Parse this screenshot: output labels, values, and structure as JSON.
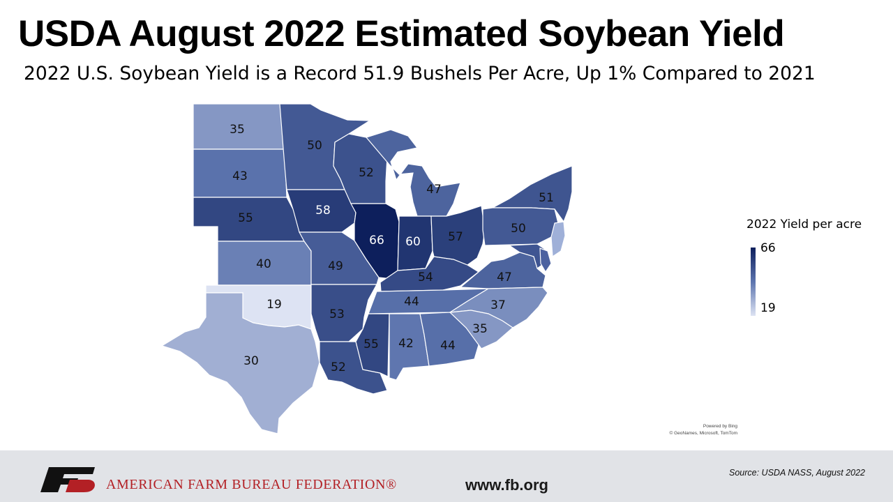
{
  "title": "USDA August 2022 Estimated Soybean Yield",
  "subtitle": "2022 U.S. Soybean Yield is a Record 51.9 Bushels Per Acre, Up 1% Compared to 2021",
  "legend": {
    "title": "2022 Yield per acre",
    "max": "66",
    "min": "19",
    "color_max": "#0d1f5c",
    "color_min": "#dde3f3"
  },
  "map_credit": {
    "line1": "Powered by Bing",
    "line2": "© GeoNames, Microsoft, TomTom"
  },
  "footer": {
    "org_name": "AMERICAN FARM BUREAU FEDERATION®",
    "website": "www.fb.org",
    "source": "Source:  USDA NASS, August 2022",
    "brand_red": "#b32025",
    "background": "#e1e3e7"
  },
  "states": [
    {
      "id": "ND",
      "yield": 35
    },
    {
      "id": "SD",
      "yield": 43
    },
    {
      "id": "NE",
      "yield": 55
    },
    {
      "id": "KS",
      "yield": 40
    },
    {
      "id": "OK",
      "yield": 19
    },
    {
      "id": "TX",
      "yield": 30
    },
    {
      "id": "MN",
      "yield": 50
    },
    {
      "id": "IA",
      "yield": 58
    },
    {
      "id": "MO",
      "yield": 49
    },
    {
      "id": "AR",
      "yield": 53
    },
    {
      "id": "LA",
      "yield": 52
    },
    {
      "id": "WI",
      "yield": 52
    },
    {
      "id": "IL",
      "yield": 66
    },
    {
      "id": "MS",
      "yield": 55
    },
    {
      "id": "MI",
      "yield": 47
    },
    {
      "id": "IN",
      "yield": 60
    },
    {
      "id": "KY",
      "yield": 54
    },
    {
      "id": "TN",
      "yield": 44
    },
    {
      "id": "AL",
      "yield": 42
    },
    {
      "id": "OH",
      "yield": 57
    },
    {
      "id": "GA",
      "yield": 44
    },
    {
      "id": "NY",
      "yield": 51
    },
    {
      "id": "PA",
      "yield": 50
    },
    {
      "id": "VA",
      "yield": 47
    },
    {
      "id": "NC",
      "yield": 37
    },
    {
      "id": "SC",
      "yield": 35
    },
    {
      "id": "NJ"
    },
    {
      "id": "DE"
    },
    {
      "id": "MD"
    }
  ]
}
